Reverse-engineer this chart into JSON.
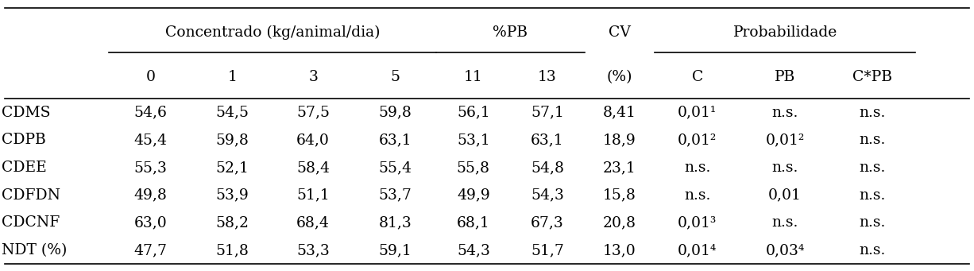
{
  "rows": [
    [
      "CDMS",
      "54,6",
      "54,5",
      "57,5",
      "59,8",
      "56,1",
      "57,1",
      "8,41",
      "0,01¹",
      "n.s.",
      "n.s."
    ],
    [
      "CDPB",
      "45,4",
      "59,8",
      "64,0",
      "63,1",
      "53,1",
      "63,1",
      "18,9",
      "0,01²",
      "0,01²",
      "n.s."
    ],
    [
      "CDEE",
      "55,3",
      "52,1",
      "58,4",
      "55,4",
      "55,8",
      "54,8",
      "23,1",
      "n.s.",
      "n.s.",
      "n.s."
    ],
    [
      "CDFDN",
      "49,8",
      "53,9",
      "51,1",
      "53,7",
      "49,9",
      "54,3",
      "15,8",
      "n.s.",
      "0,01",
      "n.s."
    ],
    [
      "CDCNF",
      "63,0",
      "58,2",
      "68,4",
      "81,3",
      "68,1",
      "67,3",
      "20,8",
      "0,01³",
      "n.s.",
      "n.s."
    ],
    [
      "NDT (%)",
      "47,7",
      "51,8",
      "53,3",
      "59,1",
      "54,3",
      "51,7",
      "13,0",
      "0,01⁴",
      "0,03⁴",
      "n.s."
    ]
  ],
  "col_header_row2": [
    "",
    "0",
    "1",
    "3",
    "5",
    "11",
    "13",
    "(%)",
    "C",
    "PB",
    "C*PB"
  ],
  "figsize": [
    12.26,
    3.41
  ],
  "dpi": 100,
  "font_size": 13.5,
  "bg_color": "#ffffff"
}
